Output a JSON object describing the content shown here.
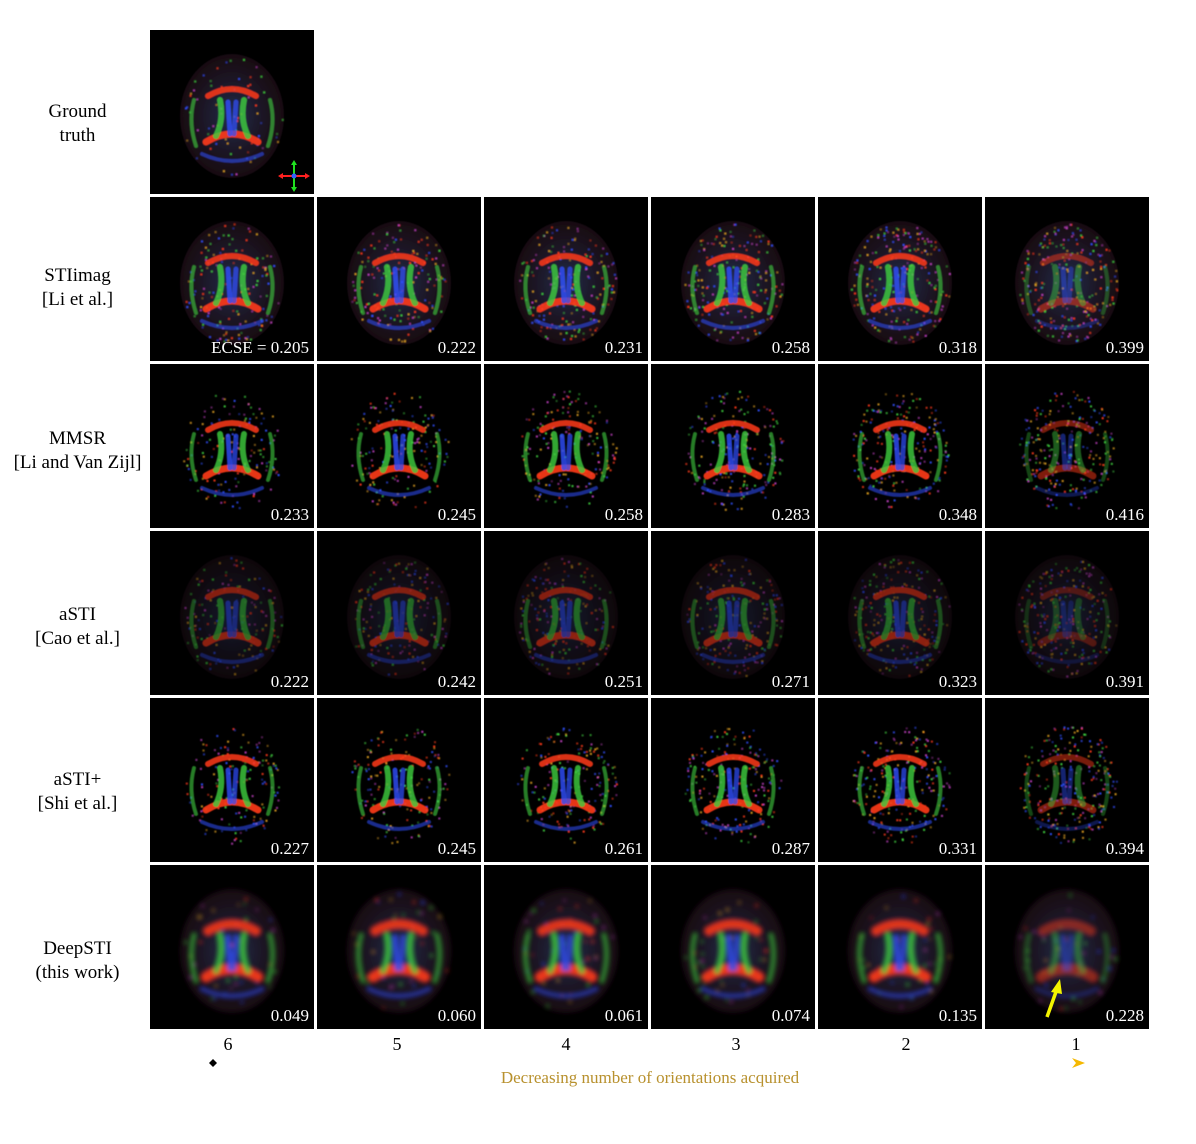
{
  "rows": [
    {
      "line1": "Ground",
      "line2": "truth",
      "values": []
    },
    {
      "line1": "STIimag",
      "line2": "[Li et al.]",
      "values": [
        "ECSE = 0.205",
        "0.222",
        "0.231",
        "0.258",
        "0.318",
        "0.399"
      ]
    },
    {
      "line1": "MMSR",
      "line2": "[Li and Van Zijl]",
      "values": [
        "0.233",
        "0.245",
        "0.258",
        "0.283",
        "0.348",
        "0.416"
      ]
    },
    {
      "line1": "aSTI",
      "line2": "[Cao et al.]",
      "values": [
        "0.222",
        "0.242",
        "0.251",
        "0.271",
        "0.323",
        "0.391"
      ]
    },
    {
      "line1": "aSTI+",
      "line2": "[Shi et al.]",
      "values": [
        "0.227",
        "0.245",
        "0.261",
        "0.287",
        "0.331",
        "0.394"
      ]
    },
    {
      "line1": "DeepSTI",
      "line2": "(this work)",
      "values": [
        "0.049",
        "0.060",
        "0.061",
        "0.074",
        "0.135",
        "0.228"
      ]
    }
  ],
  "columns": [
    "6",
    "5",
    "4",
    "3",
    "2",
    "1"
  ],
  "axis": {
    "caption": "Decreasing number of orientations acquired",
    "gradient_start": "#000000",
    "gradient_end": "#f5b800"
  },
  "colors": {
    "red_fiber": "#ff3a1a",
    "green_fiber": "#40d040",
    "blue_fiber": "#3050ff",
    "arrow": "#f4f400"
  }
}
